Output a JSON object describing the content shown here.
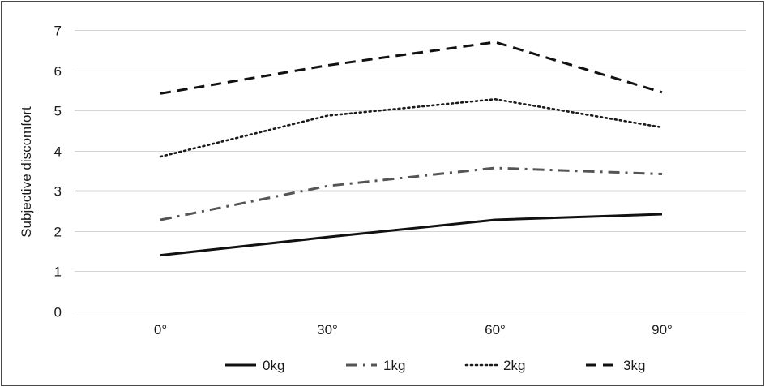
{
  "chart_data": {
    "type": "line",
    "title": "",
    "xlabel": "",
    "ylabel": "Subjective discomfort",
    "categories": [
      "0°",
      "30°",
      "60°",
      "90°"
    ],
    "ylim": [
      0,
      7
    ],
    "yticks": [
      "0",
      "1",
      "2",
      "3",
      "4",
      "5",
      "6",
      "7"
    ],
    "grid": true,
    "legend": "bottom",
    "series": [
      {
        "name": "0kg",
        "values": [
          1.4,
          1.85,
          2.28,
          2.42
        ],
        "color": "#111111",
        "style": "solid"
      },
      {
        "name": "1kg",
        "values": [
          2.28,
          3.12,
          3.57,
          3.42
        ],
        "color": "#555555",
        "style": "dash-dot"
      },
      {
        "name": "2kg",
        "values": [
          3.85,
          4.87,
          5.28,
          4.58
        ],
        "color": "#1a1a1a",
        "style": "dotted"
      },
      {
        "name": "3kg",
        "values": [
          5.42,
          6.12,
          6.7,
          5.45
        ],
        "color": "#111111",
        "style": "dashed"
      }
    ]
  }
}
